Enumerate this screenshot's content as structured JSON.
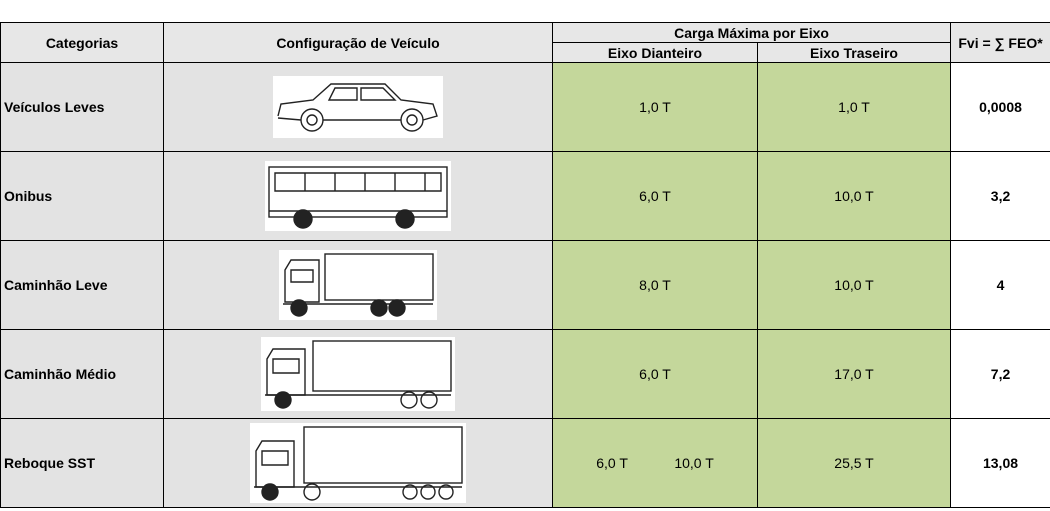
{
  "table": {
    "headers": {
      "category": "Categorias",
      "configuration": "Configuração de Veículo",
      "max_load": "Carga Máxima por Eixo",
      "front_axle": "Eixo Dianteiro",
      "rear_axle": "Eixo Traseiro",
      "fvi": "Fvi = ∑ FEO*"
    },
    "rows": [
      {
        "category": "Veículos Leves",
        "front_axle": [
          "1,0 T"
        ],
        "rear_axle": "1,0 T",
        "fvi": "0,0008"
      },
      {
        "category": "Onibus",
        "front_axle": [
          "6,0 T"
        ],
        "rear_axle": "10,0 T",
        "fvi": "3,2"
      },
      {
        "category": "Caminhão Leve",
        "front_axle": [
          "8,0 T"
        ],
        "rear_axle": "10,0 T",
        "fvi": "4"
      },
      {
        "category": "Caminhão Médio",
        "front_axle": [
          "6,0 T"
        ],
        "rear_axle": "17,0 T",
        "fvi": "7,2"
      },
      {
        "category": "Reboque SST",
        "front_axle": [
          "6,0 T",
          "10,0 T"
        ],
        "rear_axle": "25,5 T",
        "fvi": "13,08"
      }
    ]
  }
}
